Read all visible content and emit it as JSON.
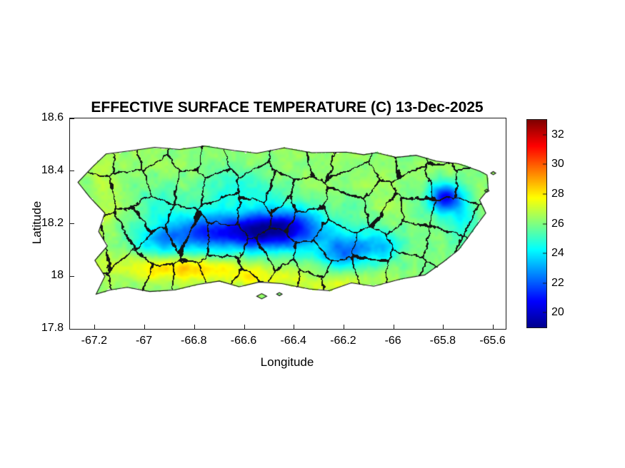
{
  "figure": {
    "background_color": "#ffffff"
  },
  "chart_data": {
    "type": "heatmap",
    "title": "EFFECTIVE SURFACE TEMPERATURE (C) 13-Dec-2025",
    "xlabel": "Longitude",
    "ylabel": "Latitude",
    "xlim": [
      -67.3,
      -65.55
    ],
    "ylim": [
      17.8,
      18.6
    ],
    "grid": false,
    "xticks": {
      "values": [
        -67.2,
        -67,
        -66.8,
        -66.6,
        -66.4,
        -66.2,
        -66,
        -65.8,
        -65.6
      ],
      "labels": [
        "-67.2",
        "-67",
        "-66.8",
        "-66.6",
        "-66.4",
        "-66.2",
        "-66",
        "-65.8",
        "-65.6"
      ]
    },
    "yticks": {
      "values": [
        18.6,
        18.4,
        18.2,
        18,
        17.8
      ],
      "labels": [
        "18.6",
        "18.4",
        "18.2",
        "18",
        "17.8"
      ]
    },
    "colorbar": {
      "position": "right",
      "range": [
        19,
        33
      ],
      "ticks": [
        20,
        22,
        24,
        26,
        28,
        30,
        32
      ],
      "colormap": "jet",
      "stops": [
        [
          0,
          "#00008f"
        ],
        [
          0.125,
          "#0000ff"
        ],
        [
          0.375,
          "#00ffff"
        ],
        [
          0.625,
          "#ffff00"
        ],
        [
          0.875,
          "#ff0000"
        ],
        [
          1,
          "#800000"
        ]
      ]
    },
    "map": {
      "base_temp_c": 26.2,
      "island_outline": [
        [
          -67.155,
          18.465
        ],
        [
          -67.05,
          18.478
        ],
        [
          -66.96,
          18.49
        ],
        [
          -66.86,
          18.482
        ],
        [
          -66.76,
          18.495
        ],
        [
          -66.64,
          18.478
        ],
        [
          -66.55,
          18.468
        ],
        [
          -66.44,
          18.488
        ],
        [
          -66.33,
          18.47
        ],
        [
          -66.19,
          18.472
        ],
        [
          -66.12,
          18.462
        ],
        [
          -66.07,
          18.47
        ],
        [
          -65.99,
          18.452
        ],
        [
          -65.91,
          18.46
        ],
        [
          -65.83,
          18.438
        ],
        [
          -65.74,
          18.428
        ],
        [
          -65.655,
          18.4
        ],
        [
          -65.625,
          18.385
        ],
        [
          -65.62,
          18.33
        ],
        [
          -65.655,
          18.29
        ],
        [
          -65.63,
          18.24
        ],
        [
          -65.67,
          18.19
        ],
        [
          -65.7,
          18.15
        ],
        [
          -65.74,
          18.1
        ],
        [
          -65.8,
          18.055
        ],
        [
          -65.875,
          18.005
        ],
        [
          -65.97,
          17.99
        ],
        [
          -66.08,
          17.962
        ],
        [
          -66.17,
          17.975
        ],
        [
          -66.26,
          17.945
        ],
        [
          -66.34,
          17.952
        ],
        [
          -66.45,
          17.972
        ],
        [
          -66.54,
          17.978
        ],
        [
          -66.62,
          17.96
        ],
        [
          -66.7,
          17.982
        ],
        [
          -66.79,
          17.968
        ],
        [
          -66.88,
          17.948
        ],
        [
          -66.98,
          17.942
        ],
        [
          -67.07,
          17.958
        ],
        [
          -67.14,
          17.948
        ],
        [
          -67.195,
          17.932
        ],
        [
          -67.16,
          18.0
        ],
        [
          -67.2,
          18.06
        ],
        [
          -67.15,
          18.115
        ],
        [
          -67.185,
          18.17
        ],
        [
          -67.16,
          18.24
        ],
        [
          -67.22,
          18.3
        ],
        [
          -67.268,
          18.357
        ],
        [
          -67.21,
          18.415
        ]
      ],
      "islets": [
        [
          [
            -66.55,
            17.924
          ],
          [
            -66.53,
            17.934
          ],
          [
            -66.51,
            17.924
          ],
          [
            -66.53,
            17.914
          ]
        ],
        [
          [
            -66.47,
            17.932
          ],
          [
            -66.459,
            17.938
          ],
          [
            -66.448,
            17.932
          ],
          [
            -66.459,
            17.926
          ]
        ],
        [
          [
            -65.61,
            18.392
          ],
          [
            -65.6,
            18.398
          ],
          [
            -65.59,
            18.392
          ],
          [
            -65.6,
            18.386
          ]
        ],
        [
          [
            -65.635,
            18.325
          ],
          [
            -65.626,
            18.331
          ],
          [
            -65.617,
            18.325
          ],
          [
            -65.626,
            18.319
          ]
        ]
      ],
      "features": [
        {
          "name": "cordillera-broad-ridge",
          "lon": -66.5,
          "lat": 18.17,
          "sigma_lon": 0.33,
          "sigma_lat": 0.07,
          "delta_c": -1.8
        },
        {
          "name": "cordillera-west-maricao",
          "lon": -66.92,
          "lat": 18.14,
          "sigma_lon": 0.08,
          "sigma_lat": 0.045,
          "delta_c": -2.6
        },
        {
          "name": "cordillera-adjuntas",
          "lon": -66.74,
          "lat": 18.17,
          "sigma_lon": 0.08,
          "sigma_lat": 0.05,
          "delta_c": -3.2
        },
        {
          "name": "cordillera-toro-negro",
          "lon": -66.56,
          "lat": 18.17,
          "sigma_lon": 0.08,
          "sigma_lat": 0.045,
          "delta_c": -4.4
        },
        {
          "name": "cordillera-barranquitas",
          "lon": -66.42,
          "lat": 18.185,
          "sigma_lon": 0.08,
          "sigma_lat": 0.05,
          "delta_c": -4.0
        },
        {
          "name": "sierra-de-cayey",
          "lon": -66.2,
          "lat": 18.09,
          "sigma_lon": 0.07,
          "sigma_lat": 0.045,
          "delta_c": -3.2
        },
        {
          "name": "carite",
          "lon": -66.05,
          "lat": 18.11,
          "sigma_lon": 0.06,
          "sigma_lat": 0.04,
          "delta_c": -2.2
        },
        {
          "name": "el-yunque",
          "lon": -65.79,
          "lat": 18.3,
          "sigma_lon": 0.05,
          "sigma_lat": 0.04,
          "delta_c": -5.2
        },
        {
          "name": "naguabo-foothills",
          "lon": -65.73,
          "lat": 18.21,
          "sigma_lon": 0.05,
          "sigma_lat": 0.05,
          "delta_c": -1.4
        },
        {
          "name": "north-central-karst",
          "lon": -66.62,
          "lat": 18.33,
          "sigma_lon": 0.11,
          "sigma_lat": 0.05,
          "delta_c": -1.5
        },
        {
          "name": "utuado-valley",
          "lon": -66.95,
          "lat": 18.28,
          "sigma_lon": 0.07,
          "sigma_lat": 0.05,
          "delta_c": -1.0
        },
        {
          "name": "southwest-coast-warm",
          "lon": -66.85,
          "lat": 18.03,
          "sigma_lon": 0.18,
          "sigma_lat": 0.035,
          "delta_c": 2.3
        },
        {
          "name": "ponce-coast-warm",
          "lon": -66.55,
          "lat": 17.995,
          "sigma_lon": 0.1,
          "sigma_lat": 0.03,
          "delta_c": 1.4
        },
        {
          "name": "santa-isabel-coast-warm",
          "lon": -66.25,
          "lat": 17.97,
          "sigma_lon": 0.12,
          "sigma_lat": 0.03,
          "delta_c": 1.1
        },
        {
          "name": "west-coast-warm",
          "lon": -67.17,
          "lat": 18.25,
          "sigma_lon": 0.04,
          "sigma_lat": 0.15,
          "delta_c": 0.8
        },
        {
          "name": "caguas-valley",
          "lon": -66.03,
          "lat": 18.25,
          "sigma_lon": 0.05,
          "sigma_lat": 0.05,
          "delta_c": 0.7
        }
      ],
      "noise": {
        "seed": 12,
        "scale": 26,
        "amplitude": 0.55
      },
      "boundaries": {
        "seed": 7,
        "cols": 13,
        "rows": 5,
        "jitter": 0.9,
        "edge_width_deg": 0.005,
        "color": "#141414"
      }
    }
  }
}
